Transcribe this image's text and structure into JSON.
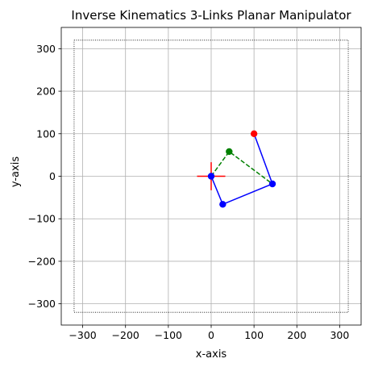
{
  "chart_data": {
    "type": "scatter",
    "title": "Inverse Kinematics 3-Links Planar Manipulator",
    "xlabel": "x-axis",
    "ylabel": "y-axis",
    "xlim": [
      -350,
      350
    ],
    "ylim": [
      -350,
      350
    ],
    "xticks": [
      -300,
      -200,
      -100,
      0,
      100,
      200,
      300
    ],
    "yticks": [
      -300,
      -200,
      -100,
      0,
      100,
      200,
      300
    ],
    "xtick_labels": [
      "−300",
      "−200",
      "−100",
      "0",
      "100",
      "200",
      "300"
    ],
    "ytick_labels": [
      "−300",
      "−200",
      "−100",
      "0",
      "100",
      "200",
      "300"
    ],
    "grid": true,
    "workspace_boundary": {
      "x": [
        -320,
        320,
        320,
        -320,
        -320
      ],
      "y": [
        320,
        320,
        -320,
        -320,
        320
      ],
      "color": "#000000",
      "style": "dotted"
    },
    "origin_marker": {
      "x": 0,
      "y": 0,
      "half_length": 33,
      "color": "#ff0000"
    },
    "manipulator_links": {
      "x": [
        0,
        27,
        143,
        100
      ],
      "y": [
        0,
        -66,
        -18,
        100
      ],
      "color": "#0000ff",
      "style": "solid"
    },
    "joints": {
      "x": [
        0,
        27,
        143
      ],
      "y": [
        0,
        -66,
        -18
      ],
      "color": "#0000ff"
    },
    "end_effector": {
      "x": 100,
      "y": 100,
      "color": "#ff0000"
    },
    "reference_path": {
      "x": [
        0,
        42,
        143
      ],
      "y": [
        0,
        58,
        -18
      ],
      "color": "#008000",
      "style": "dashed"
    },
    "reference_point": {
      "x": 42,
      "y": 58,
      "color": "#008000"
    }
  }
}
